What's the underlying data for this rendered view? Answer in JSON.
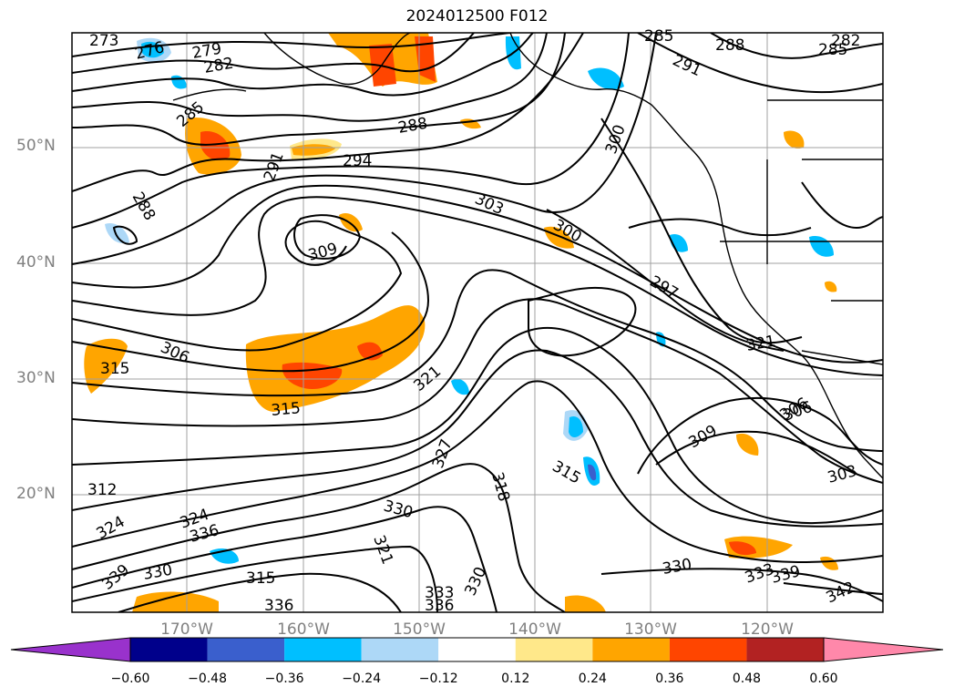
{
  "title": "2024012500 F012",
  "axes": {
    "lat_labels": [
      "50°N",
      "40°N",
      "30°N",
      "20°N"
    ],
    "lon_labels": [
      "170°W",
      "160°W",
      "150°W",
      "140°W",
      "130°W",
      "120°W"
    ]
  },
  "contour_labels": [
    "273",
    "276",
    "279",
    "282",
    "285",
    "288",
    "291",
    "294",
    "297",
    "300",
    "303",
    "306",
    "309",
    "312",
    "315",
    "318",
    "321",
    "324",
    "327",
    "330",
    "333",
    "336",
    "339",
    "342"
  ],
  "colorbar": {
    "ticks": [
      "−0.60",
      "−0.48",
      "−0.36",
      "−0.24",
      "−0.12",
      "0.12",
      "0.24",
      "0.36",
      "0.48",
      "0.60"
    ],
    "colors": [
      "#9932cc",
      "#00008b",
      "#3a5fcd",
      "#00bfff",
      "#add8f7",
      "#ffffff",
      "#ffe88a",
      "#ffa500",
      "#ff4500",
      "#b22222",
      "#ff88aa"
    ]
  }
}
